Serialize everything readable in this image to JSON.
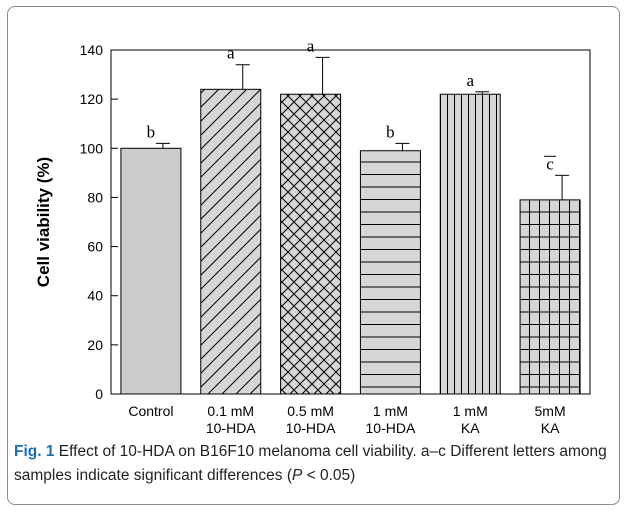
{
  "chart_data": {
    "type": "bar",
    "ylabel": "Cell viability (%)",
    "ylim": [
      0,
      140
    ],
    "yticks": [
      0,
      20,
      40,
      60,
      80,
      100,
      120,
      140
    ],
    "grid": false,
    "categories": [
      [
        "Control"
      ],
      [
        "0.1 mM",
        "10-HDA"
      ],
      [
        "0.5 mM",
        "10-HDA"
      ],
      [
        "1 mM",
        "10-HDA"
      ],
      [
        "1 mM",
        "KA"
      ],
      [
        "5mM",
        "KA"
      ]
    ],
    "values": [
      100,
      124,
      122,
      99,
      122,
      79
    ],
    "errors": [
      2,
      10,
      15,
      3,
      1,
      10
    ],
    "significance_letters": [
      "b",
      "a",
      "a",
      "b",
      "a",
      "c"
    ],
    "bar_fill": "#cccccc",
    "bar_patterns": [
      "solid",
      "diagonal",
      "crosshatch",
      "horizontal",
      "vertical",
      "grid"
    ]
  },
  "caption": {
    "label": "Fig. 1",
    "text_before_italic": "Effect of 10-HDA on B16F10 melanoma cell viability. a–c Different letters among samples indicate significant differences (",
    "italic": "P",
    "text_after_italic": " < 0.05)"
  }
}
